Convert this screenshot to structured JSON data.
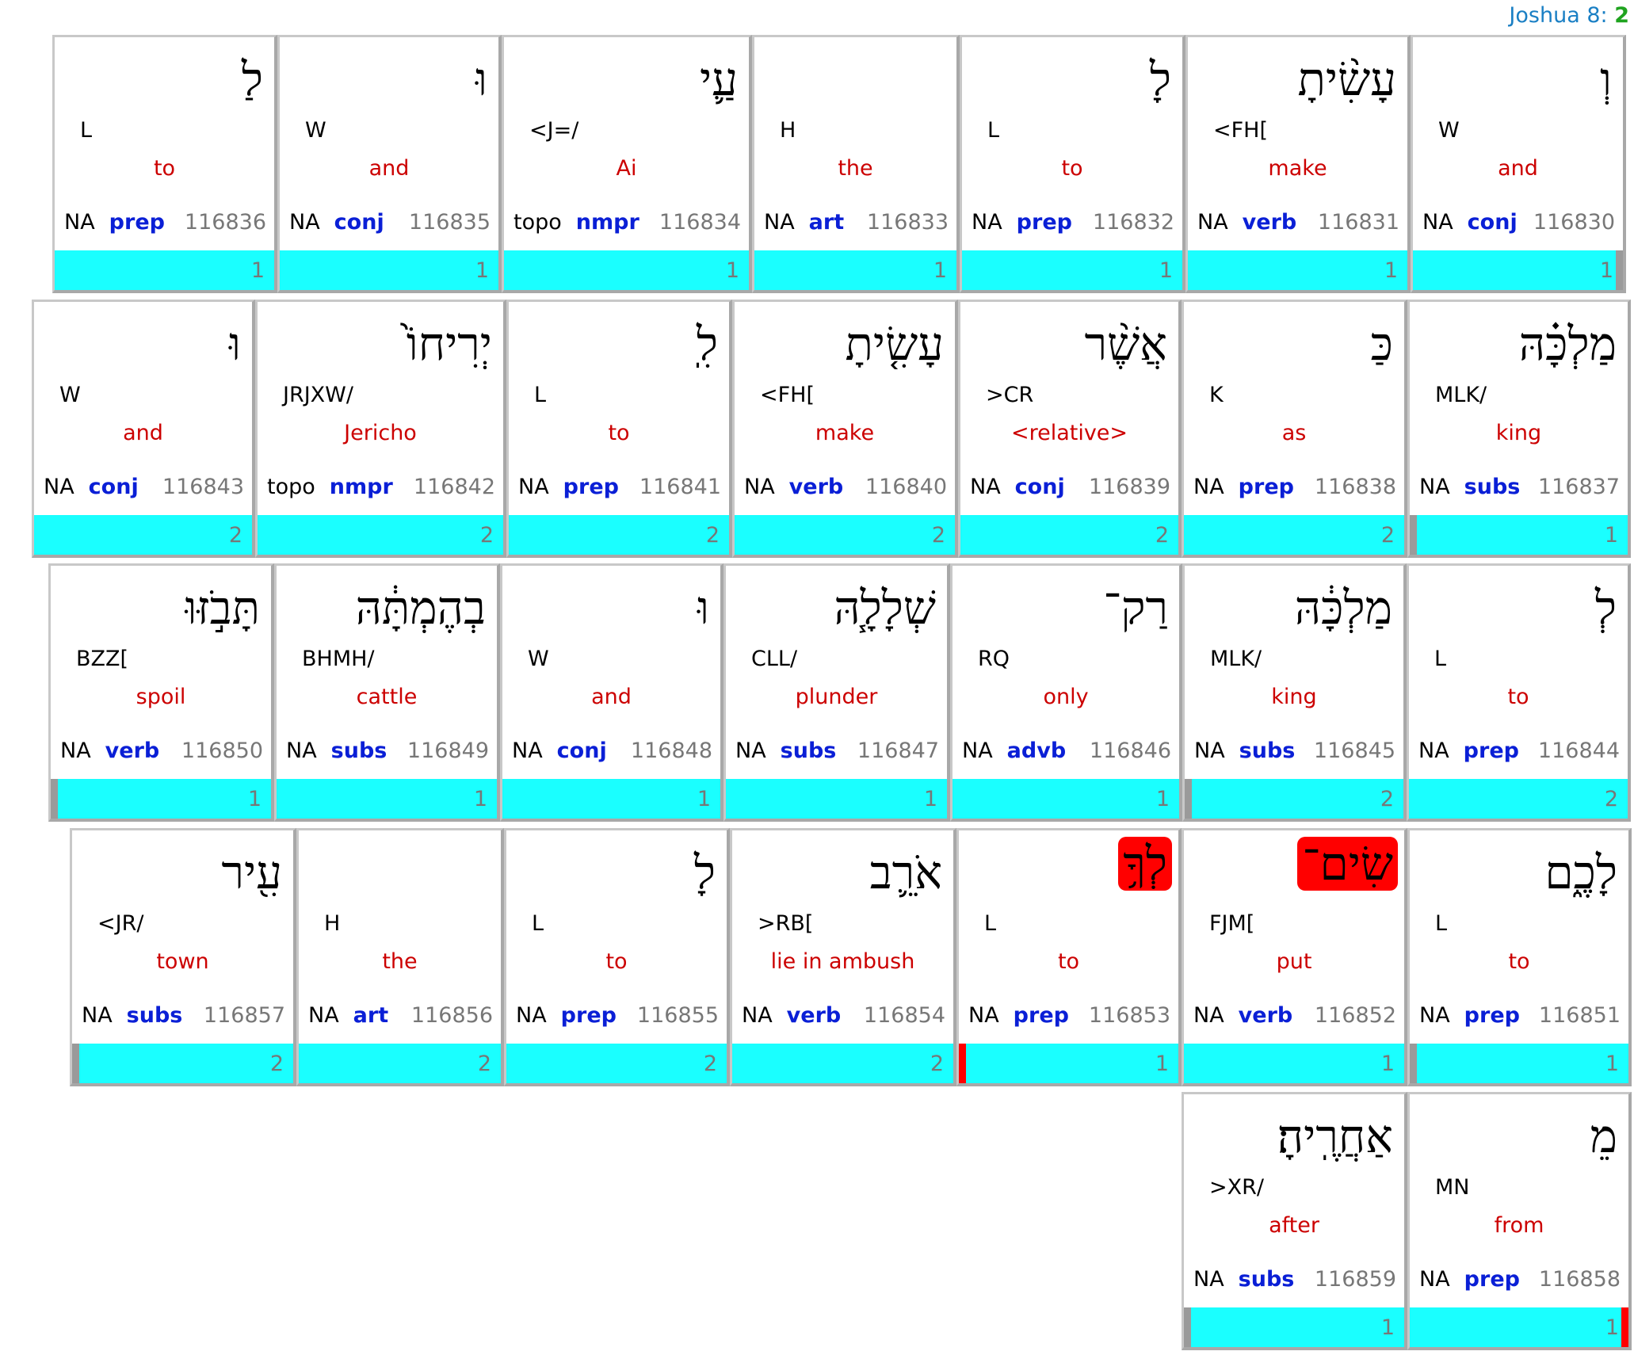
{
  "reference": {
    "book_chapter": "Joshua 8:",
    "verse": "2"
  },
  "rows": [
    {
      "cards": [
        {
          "hebrew": "לַ",
          "lex": "L",
          "gloss": "to",
          "na": "NA",
          "pos": "prep",
          "id": "116836",
          "count": "1"
        },
        {
          "hebrew": "וּ",
          "lex": "W",
          "gloss": "and",
          "na": "NA",
          "pos": "conj",
          "id": "116835",
          "count": "1"
        },
        {
          "hebrew": "עַ֛י",
          "lex": "<J=/",
          "gloss": "Ai",
          "na": "topo",
          "pos": "nmpr",
          "id": "116834",
          "count": "1"
        },
        {
          "hebrew": "",
          "lex": "H",
          "gloss": "the",
          "na": "NA",
          "pos": "art",
          "id": "116833",
          "count": "1"
        },
        {
          "hebrew": "לָ",
          "lex": "L",
          "gloss": "to",
          "na": "NA",
          "pos": "prep",
          "id": "116832",
          "count": "1"
        },
        {
          "hebrew": "עָשִׂ֨יתָ",
          "lex": "<FH[",
          "gloss": "make",
          "na": "NA",
          "pos": "verb",
          "id": "116831",
          "count": "1"
        },
        {
          "hebrew": "וְ",
          "lex": "W",
          "gloss": "and",
          "na": "NA",
          "pos": "conj",
          "id": "116830",
          "count": "1"
        }
      ]
    },
    {
      "cards": [
        {
          "hebrew": "וּ",
          "lex": "W",
          "gloss": "and",
          "na": "NA",
          "pos": "conj",
          "id": "116843",
          "count": "2"
        },
        {
          "hebrew": "יְרִיחוֹ֙",
          "lex": "JRJXW/",
          "gloss": "Jericho",
          "na": "topo",
          "pos": "nmpr",
          "id": "116842",
          "count": "2"
        },
        {
          "hebrew": "לִֽ",
          "lex": "L",
          "gloss": "to",
          "na": "NA",
          "pos": "prep",
          "id": "116841",
          "count": "2"
        },
        {
          "hebrew": "עָשִׂ֤יתָ",
          "lex": "<FH[",
          "gloss": "make",
          "na": "NA",
          "pos": "verb",
          "id": "116840",
          "count": "2"
        },
        {
          "hebrew": "אֲשֶׁ֨ר",
          "lex": ">CR",
          "gloss": "<relative>",
          "na": "NA",
          "pos": "conj",
          "id": "116839",
          "count": "2"
        },
        {
          "hebrew": "כַּ",
          "lex": "K",
          "gloss": "as",
          "na": "NA",
          "pos": "prep",
          "id": "116838",
          "count": "2"
        },
        {
          "hebrew": "מַלְכָּ֗הּ",
          "lex": "MLK/",
          "gloss": "king",
          "na": "NA",
          "pos": "subs",
          "id": "116837",
          "count": "1"
        }
      ]
    },
    {
      "cards": [
        {
          "hebrew": "תָּבֹ֣זּוּ",
          "lex": "BZZ[",
          "gloss": "spoil",
          "na": "NA",
          "pos": "verb",
          "id": "116850",
          "count": "1"
        },
        {
          "hebrew": "בְהֶמְתָּ֔הּ",
          "lex": "BHMH/",
          "gloss": "cattle",
          "na": "NA",
          "pos": "subs",
          "id": "116849",
          "count": "1"
        },
        {
          "hebrew": "וּ",
          "lex": "W",
          "gloss": "and",
          "na": "NA",
          "pos": "conj",
          "id": "116848",
          "count": "1"
        },
        {
          "hebrew": "שְׁלָלָ֧הּ",
          "lex": "CLL/",
          "gloss": "plunder",
          "na": "NA",
          "pos": "subs",
          "id": "116847",
          "count": "1"
        },
        {
          "hebrew": "רַק־",
          "lex": "RQ",
          "gloss": "only",
          "na": "NA",
          "pos": "advb",
          "id": "116846",
          "count": "1"
        },
        {
          "hebrew": "מַלְכָּ֔הּ",
          "lex": "MLK/",
          "gloss": "king",
          "na": "NA",
          "pos": "subs",
          "id": "116845",
          "count": "2"
        },
        {
          "hebrew": "לְ",
          "lex": "L",
          "gloss": "to",
          "na": "NA",
          "pos": "prep",
          "id": "116844",
          "count": "2"
        }
      ]
    },
    {
      "cards": [
        {
          "hebrew": "עִ֖יר",
          "lex": "<JR/",
          "gloss": "town",
          "na": "NA",
          "pos": "subs",
          "id": "116857",
          "count": "2"
        },
        {
          "hebrew": "",
          "lex": "H",
          "gloss": "the",
          "na": "NA",
          "pos": "art",
          "id": "116856",
          "count": "2"
        },
        {
          "hebrew": "לָ",
          "lex": "L",
          "gloss": "to",
          "na": "NA",
          "pos": "prep",
          "id": "116855",
          "count": "2"
        },
        {
          "hebrew": "אֹרֵ֛ב",
          "lex": ">RB[",
          "gloss": "lie in ambush",
          "na": "NA",
          "pos": "verb",
          "id": "116854",
          "count": "2"
        },
        {
          "hebrew": "לְךָ֥",
          "lex": "L",
          "gloss": "to",
          "na": "NA",
          "pos": "prep",
          "id": "116853",
          "count": "1"
        },
        {
          "hebrew": "שִׂים־",
          "lex": "FJM[",
          "gloss": "put",
          "na": "NA",
          "pos": "verb",
          "id": "116852",
          "count": "1"
        },
        {
          "hebrew": "לָכֶ֑ם",
          "lex": "L",
          "gloss": "to",
          "na": "NA",
          "pos": "prep",
          "id": "116851",
          "count": "1"
        }
      ]
    },
    {
      "cards": [
        {
          "hebrew": "אַחֲרֶֽיהָ׃",
          "lex": ">XR/",
          "gloss": "after",
          "na": "NA",
          "pos": "subs",
          "id": "116859",
          "count": "1"
        },
        {
          "hebrew": "מֵ",
          "lex": "MN",
          "gloss": "from",
          "na": "NA",
          "pos": "prep",
          "id": "116858",
          "count": "1"
        }
      ]
    }
  ]
}
